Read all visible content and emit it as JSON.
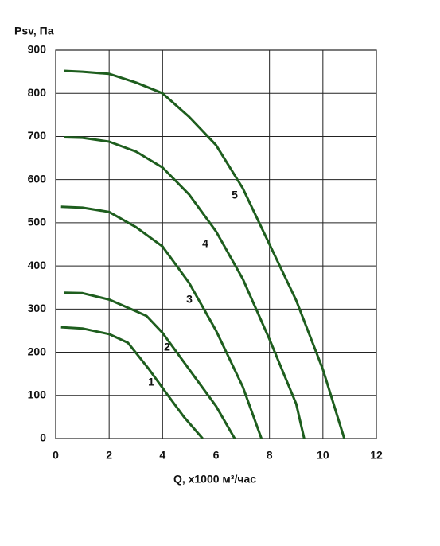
{
  "chart_data": {
    "type": "line",
    "y_label": "Psv, Па",
    "x_label": "Q, x1000 м³/час",
    "xlim": [
      0,
      12
    ],
    "xticks": [
      0,
      2,
      4,
      6,
      8,
      10,
      12
    ],
    "ylim": [
      0,
      900
    ],
    "yticks": [
      0,
      100,
      200,
      300,
      400,
      500,
      600,
      700,
      800,
      900
    ],
    "grid": true,
    "series": [
      {
        "name": "1",
        "color": "#1e5e1e",
        "x": [
          0.2,
          1,
          2,
          2.7,
          3.5,
          4.2,
          4.8,
          5.5
        ],
        "values": [
          258,
          255,
          242,
          222,
          160,
          100,
          50,
          0
        ]
      },
      {
        "name": "2",
        "color": "#1e5e1e",
        "x": [
          0.3,
          1,
          2,
          3,
          3.4,
          4,
          5,
          6,
          6.7
        ],
        "values": [
          338,
          337,
          322,
          295,
          284,
          245,
          160,
          75,
          0
        ]
      },
      {
        "name": "3",
        "color": "#1e5e1e",
        "x": [
          0.2,
          1,
          2,
          3,
          4,
          5,
          6,
          7,
          7.7
        ],
        "values": [
          537,
          535,
          525,
          490,
          445,
          360,
          250,
          120,
          0
        ]
      },
      {
        "name": "4",
        "color": "#1e5e1e",
        "x": [
          0.3,
          1,
          2,
          3,
          4,
          5,
          6,
          7,
          8,
          9,
          9.3
        ],
        "values": [
          698,
          697,
          688,
          665,
          628,
          565,
          480,
          370,
          230,
          80,
          0
        ]
      },
      {
        "name": "5",
        "color": "#1e5e1e",
        "x": [
          0.3,
          1,
          2,
          3,
          4,
          5,
          6,
          7,
          8,
          9,
          10,
          10.8
        ],
        "values": [
          852,
          850,
          845,
          825,
          800,
          745,
          680,
          580,
          450,
          320,
          160,
          0
        ]
      }
    ]
  }
}
